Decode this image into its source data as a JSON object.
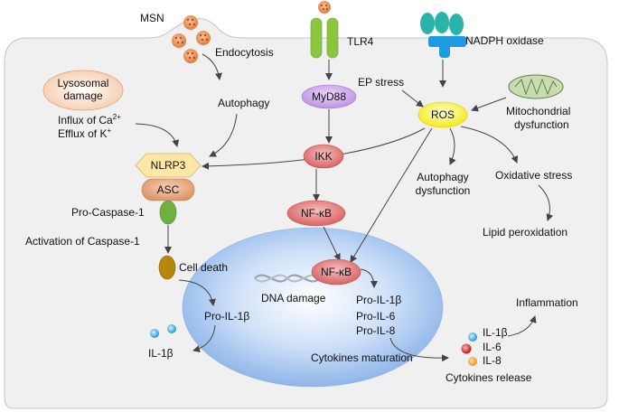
{
  "labels": {
    "msn": "MSN",
    "endocytosis": "Endocytosis",
    "tlr4": "TLR4",
    "nadph_oxidase": "NADPH oxidase",
    "lysosomal_damage_line1": "Lysosomal",
    "lysosomal_damage_line2": "damage",
    "influx_ca": "Influx of Ca",
    "influx_ca_sup": "2+",
    "efflux_k": "Efflux of K",
    "efflux_k_sup": "+",
    "autophagy": "Autophagy",
    "myd88": "MyD88",
    "ep_stress": "EP stress",
    "ros": "ROS",
    "mito_line1": "Mitochondrial",
    "mito_line2": "dysfunction",
    "nlrp3": "NLRP3",
    "asc": "ASC",
    "ikk": "IKK",
    "autophagy_dys_line1": "Autophagy",
    "autophagy_dys_line2": "dysfunction",
    "oxidative_stress": "Oxidative stress",
    "pro_caspase": "Pro-Caspase-1",
    "nfkb_cyto": "NF-κB",
    "activation_caspase": "Activation of Caspase-1",
    "lipid_peroxidation": "Lipid peroxidation",
    "cell_death": "Cell death",
    "nfkb_nuc": "NF-κB",
    "dna_damage": "DNA damage",
    "pro_il1b_nuc": "Pro-IL-1β",
    "pro_il6": "Pro-IL-6",
    "pro_il8": "Pro-IL-8",
    "pro_il1b_cyto": "Pro-IL-1β",
    "inflammation": "Inflammation",
    "il1b_right": "IL-1β",
    "il6": "IL-6",
    "il8": "IL-8",
    "il1b_left": "IL-1β",
    "cytokines_maturation": "Cytokines maturation",
    "cytokines_release": "Cytokines release"
  },
  "colors": {
    "cell_fill": "#f0f0f0",
    "cell_stroke": "#bdbdbd",
    "nucleus": "#a9c9f2",
    "msn": "#e8975c",
    "tlr4": "#8cc63f",
    "nadph": "#2ab3a8",
    "myd88": "#c9a0e8",
    "ros": "#fff23a",
    "nlrp3": "#fde7a5",
    "asc": "#e8a87f",
    "nfkb": "#e06d6d",
    "caspase": "#70b040",
    "cell_death": "#b8860b",
    "il1b": "#2fa8e0",
    "il6": "#d02828",
    "il8": "#f0a030"
  }
}
